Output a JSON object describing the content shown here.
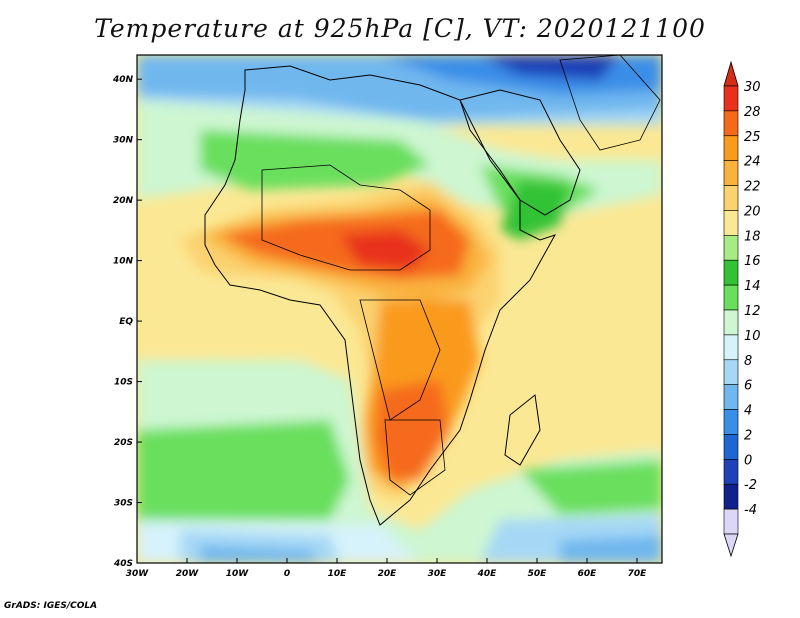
{
  "title": "Temperature at 925hPa [C], VT: 2020121100",
  "footer": "GrADS: IGES/COLA",
  "map": {
    "lon_labels": [
      "30W",
      "20W",
      "10W",
      "0",
      "10E",
      "20E",
      "30E",
      "40E",
      "50E",
      "60E",
      "70E"
    ],
    "lat_labels": [
      "40N",
      "30N",
      "20N",
      "10N",
      "EQ",
      "10S",
      "20S",
      "30S",
      "40S"
    ],
    "lon_range": [
      -30,
      75
    ],
    "lat_range": [
      -40,
      44
    ]
  },
  "colorbar": {
    "labels": [
      "30",
      "28",
      "25",
      "24",
      "22",
      "20",
      "18",
      "16",
      "14",
      "12",
      "10",
      "8",
      "6",
      "4",
      "2",
      "0",
      "-2",
      "-4"
    ],
    "colors": [
      "#e8301c",
      "#f56a1a",
      "#fa9a1e",
      "#f9b23c",
      "#fbd270",
      "#fbe894",
      "#a7eb86",
      "#33c236",
      "#69df5d",
      "#cdf6d1",
      "#d6f2fa",
      "#a6d8f5",
      "#70b7ee",
      "#3a8ee8",
      "#1f66d3",
      "#1f41b7",
      "#10218c",
      "#dcd6f7"
    ],
    "top_arrow_color": "#d42c16",
    "bottom_arrow_color": "#dcd6f7"
  }
}
